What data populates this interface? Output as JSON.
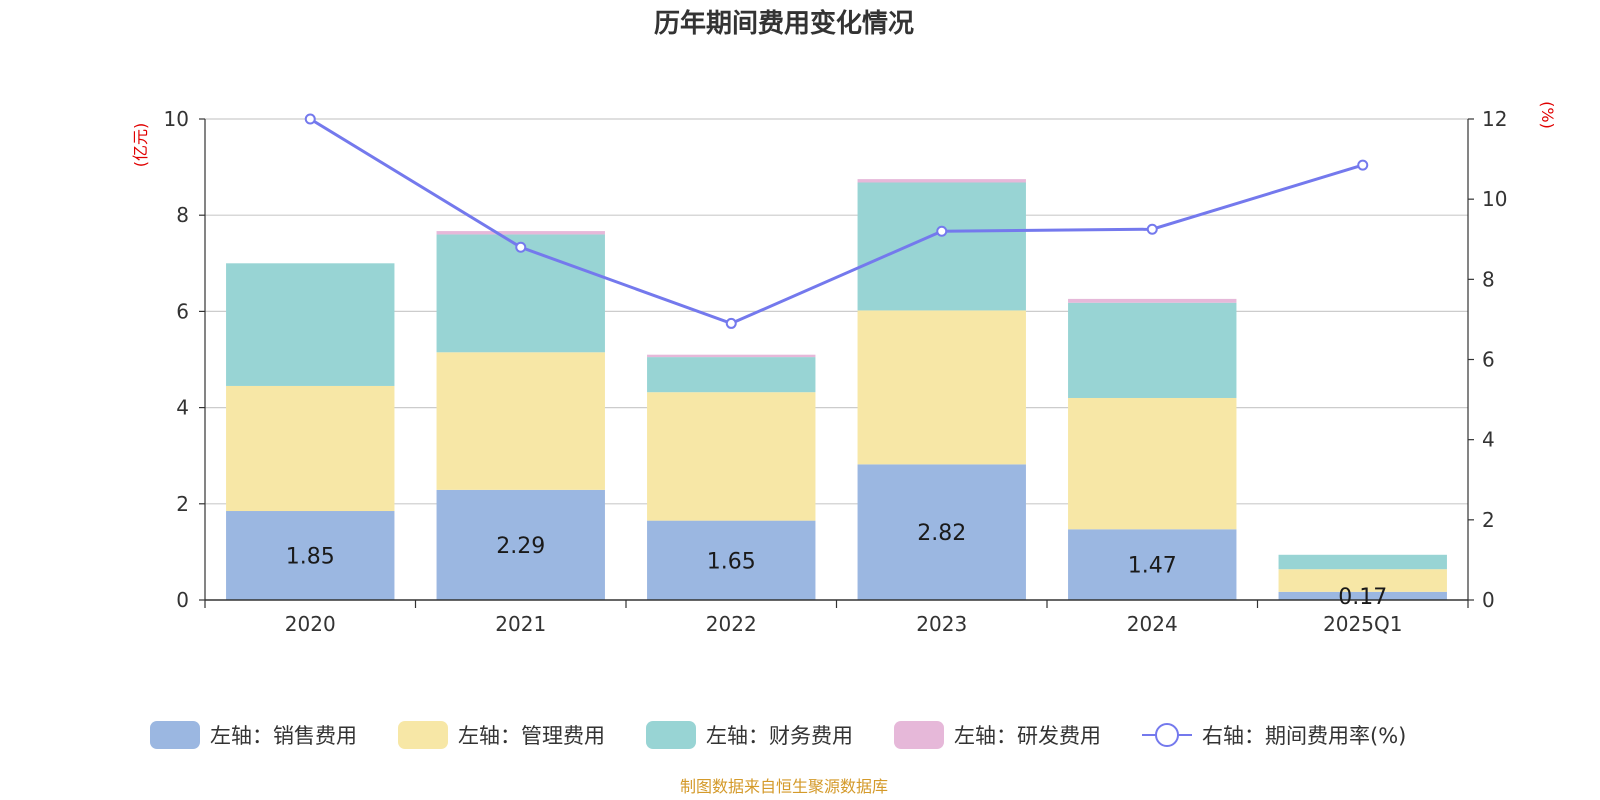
{
  "colors": {
    "sales": "#9bb7e1",
    "admin": "#f7e7a6",
    "finance": "#98d4d4",
    "rd": "#e6b8d9",
    "line": "#7479ed",
    "unit": "#e00000",
    "source": "#d49a2a",
    "grid": "#cccccc",
    "axis": "#333333"
  },
  "chart_data": {
    "type": "bar",
    "stacked": true,
    "title": "历年期间费用变化情况",
    "source_note": "制图数据来自恒生聚源数据库",
    "categories": [
      "2020",
      "2021",
      "2022",
      "2023",
      "2024",
      "2025Q1"
    ],
    "left_axis": {
      "unit": "(亿元)",
      "range": [
        0,
        10
      ],
      "ticks": [
        "0",
        "2",
        "4",
        "6",
        "8",
        "10"
      ]
    },
    "right_axis": {
      "unit": "(%)",
      "range": [
        0,
        12
      ],
      "ticks": [
        "0",
        "2",
        "4",
        "6",
        "8",
        "10",
        "12"
      ]
    },
    "grid": true,
    "legend_position": "bottom",
    "series": [
      {
        "name": "左轴：销售费用",
        "key": "sales",
        "axis": "left",
        "values": [
          1.85,
          2.29,
          1.65,
          2.82,
          1.47,
          0.17
        ],
        "labels": [
          "1.85",
          "2.29",
          "1.65",
          "2.82",
          "1.47",
          "0.17"
        ]
      },
      {
        "name": "左轴：管理费用",
        "key": "admin",
        "axis": "left",
        "values": [
          2.6,
          2.86,
          2.67,
          3.2,
          2.73,
          0.47
        ]
      },
      {
        "name": "左轴：财务费用",
        "key": "finance",
        "axis": "left",
        "values": [
          2.55,
          2.45,
          0.73,
          2.66,
          1.98,
          0.3
        ]
      },
      {
        "name": "左轴：研发费用",
        "key": "rd",
        "axis": "left",
        "values": [
          0.0,
          0.07,
          0.05,
          0.07,
          0.08,
          0.0
        ]
      },
      {
        "name": "右轴：期间费用率(%)",
        "key": "line",
        "axis": "right",
        "type": "line",
        "values": [
          12.0,
          8.8,
          6.9,
          9.2,
          9.25,
          10.85
        ]
      }
    ]
  }
}
